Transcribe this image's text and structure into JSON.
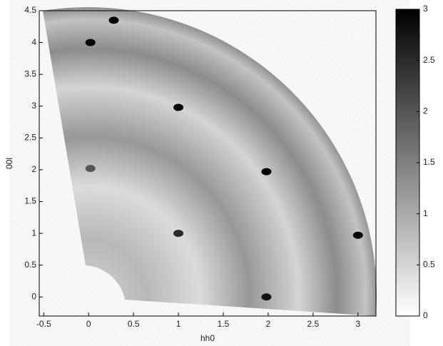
{
  "chart_data": {
    "type": "heatmap",
    "xlabel": "hh0",
    "ylabel": "00l",
    "xlim": [
      -0.55,
      3.2
    ],
    "ylim": [
      -0.3,
      4.5
    ],
    "xticks": [
      -0.5,
      0,
      0.5,
      1,
      1.5,
      2,
      2.5,
      3
    ],
    "yticks": [
      0,
      0.5,
      1,
      1.5,
      2,
      2.5,
      3,
      3.5,
      4,
      4.5
    ],
    "colorbar": {
      "lim": [
        0,
        3
      ],
      "ticks": [
        0,
        0.5,
        1,
        1.5,
        2,
        2.5,
        3
      ]
    },
    "peaks": {
      "x": [
        0.02,
        0.28,
        1.0,
        1.98,
        3.0,
        1.98,
        1.0,
        0.02
      ],
      "y": [
        4.0,
        4.35,
        2.98,
        1.97,
        0.97,
        0.0,
        1.0,
        2.02
      ],
      "values": [
        3,
        3,
        3,
        3,
        3,
        2.8,
        2.5,
        2
      ]
    }
  }
}
